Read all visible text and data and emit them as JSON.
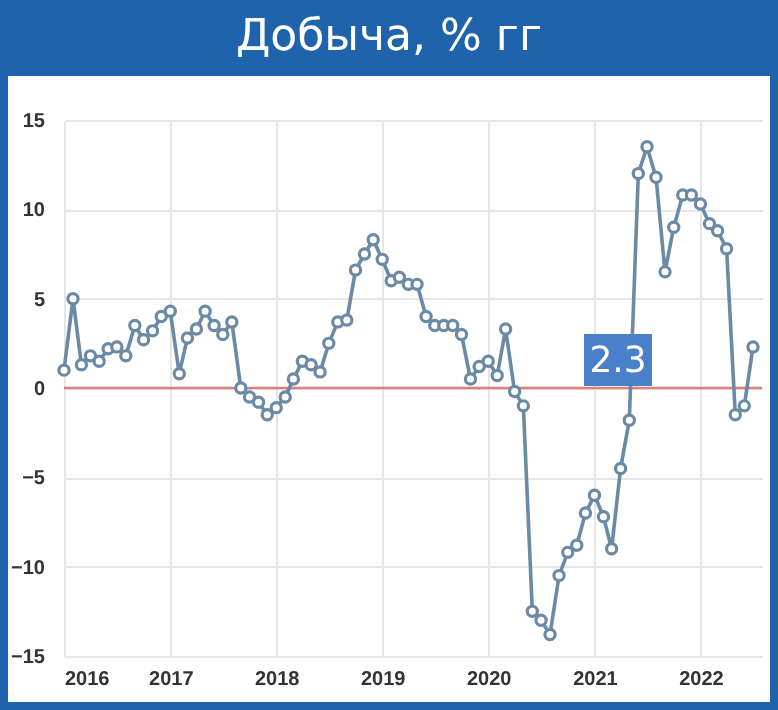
{
  "chart_data": {
    "type": "line",
    "title": "Добыча, % гг",
    "x": [
      "2016-01",
      "2016-02",
      "2016-03",
      "2016-04",
      "2016-05",
      "2016-06",
      "2016-07",
      "2016-08",
      "2016-09",
      "2016-10",
      "2016-11",
      "2016-12",
      "2017-01",
      "2017-02",
      "2017-03",
      "2017-04",
      "2017-05",
      "2017-06",
      "2017-07",
      "2017-08",
      "2017-09",
      "2017-10",
      "2017-11",
      "2017-12",
      "2018-01",
      "2018-02",
      "2018-03",
      "2018-04",
      "2018-05",
      "2018-06",
      "2018-07",
      "2018-08",
      "2018-09",
      "2018-10",
      "2018-11",
      "2018-12",
      "2019-01",
      "2019-02",
      "2019-03",
      "2019-04",
      "2019-05",
      "2019-06",
      "2019-07",
      "2019-08",
      "2019-09",
      "2019-10",
      "2019-11",
      "2019-12",
      "2020-01",
      "2020-02",
      "2020-03",
      "2020-04",
      "2020-05",
      "2020-06",
      "2020-07",
      "2020-08",
      "2020-09",
      "2020-10",
      "2020-11",
      "2020-12",
      "2021-01",
      "2021-02",
      "2021-03",
      "2021-04",
      "2021-05",
      "2021-06",
      "2021-07",
      "2021-08",
      "2021-09",
      "2021-10",
      "2021-11",
      "2021-12",
      "2022-01",
      "2022-02",
      "2022-03",
      "2022-04",
      "2022-05",
      "2022-06",
      "2022-07"
    ],
    "series": [
      {
        "color": "#6b8aa5",
        "values": [
          1.0,
          5.0,
          1.3,
          1.8,
          1.5,
          2.2,
          2.3,
          1.8,
          3.5,
          2.7,
          3.2,
          4.0,
          4.3,
          0.8,
          2.8,
          3.3,
          4.3,
          3.5,
          3.0,
          3.7,
          0.0,
          -0.5,
          -0.8,
          -1.5,
          -1.1,
          -0.5,
          0.5,
          1.5,
          1.3,
          0.9,
          2.5,
          3.7,
          3.8,
          6.6,
          7.5,
          8.3,
          7.2,
          6.0,
          6.2,
          5.8,
          5.8,
          4.0,
          3.5,
          3.5,
          3.5,
          3.0,
          0.5,
          1.2,
          1.5,
          0.7,
          3.3,
          -0.2,
          -1.0,
          -12.5,
          -13.0,
          -13.8,
          -10.5,
          -9.2,
          -8.8,
          -7.0,
          -6.0,
          -7.2,
          -9.0,
          -4.5,
          -1.8,
          12.0,
          13.5,
          11.8,
          6.5,
          9.0,
          10.8,
          10.8,
          10.3,
          9.2,
          8.8,
          7.8,
          -1.5,
          -1.0,
          2.3
        ]
      }
    ],
    "xlim": [
      "2016-01",
      "2022-08"
    ],
    "xticks": [
      "2016",
      "2017",
      "2018",
      "2019",
      "2020",
      "2021",
      "2022"
    ],
    "ylim": [
      -15,
      15
    ],
    "yticks": [
      -15,
      -10,
      -5,
      0,
      5,
      10,
      15
    ],
    "grid": true,
    "marker": "circle",
    "ref_lines": [
      {
        "axis": "y",
        "value": 0,
        "color": "#d9817a"
      }
    ],
    "annotations": [
      "2.3"
    ]
  }
}
